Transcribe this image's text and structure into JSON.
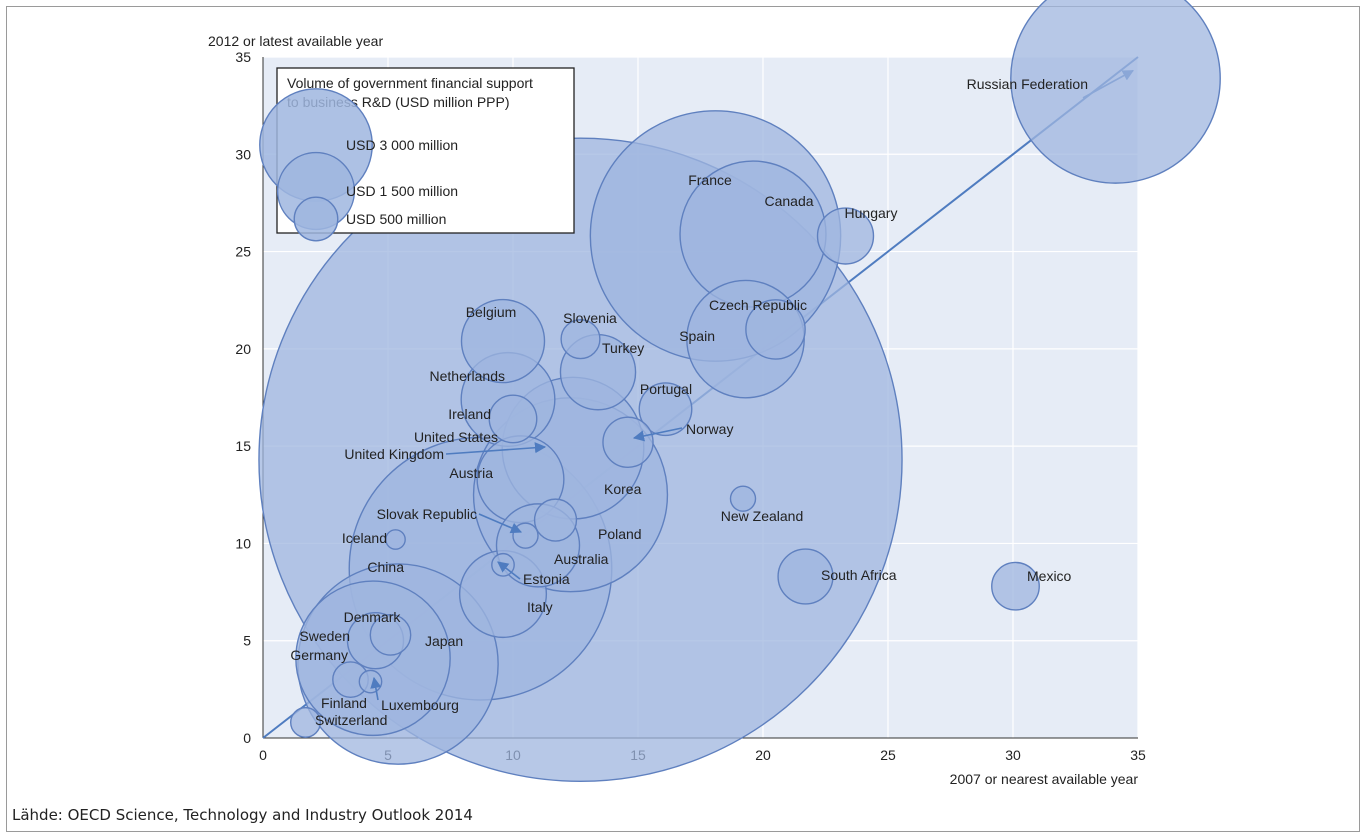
{
  "source": "Lähde: OECD Science, Technology and Industry Outlook 2014",
  "chart_data": {
    "type": "scatter",
    "ylabel": "2012 or latest available year",
    "xlabel": "2007 or nearest available year",
    "xlim": [
      0,
      35
    ],
    "ylim": [
      0,
      35
    ],
    "xticks": [
      0,
      5,
      10,
      15,
      20,
      25,
      30,
      35
    ],
    "yticks": [
      0,
      5,
      10,
      15,
      20,
      25,
      30,
      35
    ],
    "grid": true,
    "diagonal": "y = x",
    "colors": {
      "bubble_fill": "#9fb6df",
      "bubble_stroke": "#5f80bf",
      "plot_bg": "#e6ecf6",
      "line": "#4f7cc0"
    },
    "legend": {
      "title_lines": [
        "Volume of government financial support",
        "to business R&D (USD million PPP)"
      ],
      "placement": "top-left",
      "entries": [
        {
          "label": "USD 3 000 million",
          "size": 3000
        },
        {
          "label": "USD 1 500 million",
          "size": 1500
        },
        {
          "label": "USD 500 million",
          "size": 500
        }
      ]
    },
    "points": [
      {
        "name": "United States",
        "x": 12.7,
        "y": 14.3,
        "size": 33000
      },
      {
        "name": "Russian Federation",
        "x": 34.1,
        "y": 33.9,
        "size": 3500
      },
      {
        "name": "France",
        "x": 18.1,
        "y": 25.8,
        "size": 5000
      },
      {
        "name": "Canada",
        "x": 19.6,
        "y": 25.9,
        "size": 1700
      },
      {
        "name": "Hungary",
        "x": 23.3,
        "y": 25.8,
        "size": 250
      },
      {
        "name": "Belgium",
        "x": 9.6,
        "y": 20.4,
        "size": 550
      },
      {
        "name": "Slovenia",
        "x": 12.7,
        "y": 20.5,
        "size": 120
      },
      {
        "name": "Czech Republic",
        "x": 20.5,
        "y": 21.0,
        "size": 280
      },
      {
        "name": "Spain",
        "x": 19.3,
        "y": 20.5,
        "size": 1100
      },
      {
        "name": "Turkey",
        "x": 13.4,
        "y": 18.8,
        "size": 450
      },
      {
        "name": "Netherlands",
        "x": 9.8,
        "y": 17.4,
        "size": 700
      },
      {
        "name": "Portugal",
        "x": 16.1,
        "y": 16.9,
        "size": 220
      },
      {
        "name": "Ireland",
        "x": 10.0,
        "y": 16.4,
        "size": 180
      },
      {
        "name": "United Kingdom",
        "x": 12.4,
        "y": 14.9,
        "size": 1600
      },
      {
        "name": "Norway",
        "x": 14.6,
        "y": 15.2,
        "size": 200
      },
      {
        "name": "Korea",
        "x": 12.3,
        "y": 12.5,
        "size": 3000
      },
      {
        "name": "Austria",
        "x": 10.3,
        "y": 13.3,
        "size": 600
      },
      {
        "name": "New Zealand",
        "x": 19.2,
        "y": 12.3,
        "size": 50
      },
      {
        "name": "Poland",
        "x": 11.7,
        "y": 11.2,
        "size": 140
      },
      {
        "name": "Slovak Republic",
        "x": 10.5,
        "y": 10.4,
        "size": 50
      },
      {
        "name": "Iceland",
        "x": 5.3,
        "y": 10.2,
        "size": 30
      },
      {
        "name": "Australia",
        "x": 11.0,
        "y": 9.9,
        "size": 550
      },
      {
        "name": "China",
        "x": 8.7,
        "y": 8.7,
        "size": 5500
      },
      {
        "name": "Estonia",
        "x": 9.6,
        "y": 8.9,
        "size": 40
      },
      {
        "name": "Italy",
        "x": 9.6,
        "y": 7.4,
        "size": 600
      },
      {
        "name": "South Africa",
        "x": 21.7,
        "y": 8.3,
        "size": 240
      },
      {
        "name": "Mexico",
        "x": 30.1,
        "y": 7.8,
        "size": 180
      },
      {
        "name": "Denmark",
        "x": 5.1,
        "y": 5.3,
        "size": 130
      },
      {
        "name": "Sweden",
        "x": 4.5,
        "y": 5.0,
        "size": 250
      },
      {
        "name": "Germany",
        "x": 4.4,
        "y": 4.1,
        "size": 1900
      },
      {
        "name": "Japan",
        "x": 5.4,
        "y": 3.8,
        "size": 3200
      },
      {
        "name": "Finland",
        "x": 3.5,
        "y": 3.0,
        "size": 100
      },
      {
        "name": "Luxembourg",
        "x": 4.3,
        "y": 2.9,
        "size": 40
      },
      {
        "name": "Switzerland",
        "x": 1.7,
        "y": 0.8,
        "size": 70
      }
    ]
  }
}
